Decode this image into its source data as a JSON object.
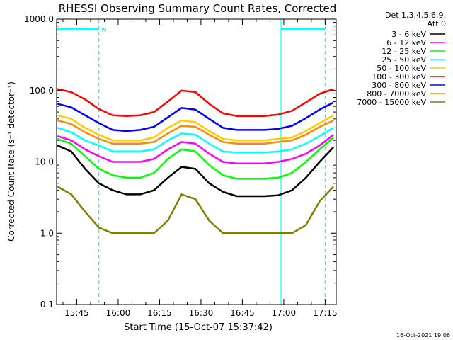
{
  "chart_data": {
    "type": "line",
    "title": "RHESSI Observing Summary Count Rates, Corrected",
    "xlabel": "Start Time (15-Oct-07 15:37:42)",
    "ylabel": "Corrected Count Rate (s⁻¹ detector⁻¹)",
    "y_scale": "log",
    "ylim": [
      0.1,
      1000.0
    ],
    "y_ticks": [
      "0.1",
      "1.0",
      "10.0",
      "100.0",
      "1000.0"
    ],
    "x_ticks": [
      "15:45",
      "16:00",
      "16:15",
      "16:30",
      "16:45",
      "17:00",
      "17:15"
    ],
    "xlim": [
      "15:37:42",
      "17:19:00"
    ],
    "grid": false,
    "legend_position": "right",
    "legend_header": [
      "Det 1,3,4,5,6,9,",
      "Att 0"
    ],
    "night_marker": "N",
    "night_intervals": [
      [
        "15:37:42",
        "15:53:00"
      ],
      [
        "16:59:00",
        "17:15:00"
      ]
    ],
    "time_axis": [
      "15:38",
      "15:43",
      "15:48",
      "15:53",
      "15:58",
      "16:03",
      "16:08",
      "16:13",
      "16:18",
      "16:23",
      "16:28",
      "16:33",
      "16:38",
      "16:43",
      "16:48",
      "16:53",
      "16:58",
      "17:03",
      "17:08",
      "17:13",
      "17:18"
    ],
    "series": [
      {
        "name": "3 - 6 keV",
        "color": "#000000",
        "values": [
          17,
          14,
          8,
          5,
          4,
          3.5,
          3.5,
          4,
          6,
          8.5,
          8,
          5,
          3.8,
          3.3,
          3.3,
          3.3,
          3.4,
          4,
          6,
          10,
          16
        ]
      },
      {
        "name": "6 - 12 keV",
        "color": "#ff00ff",
        "values": [
          23,
          20,
          15,
          12,
          10,
          10,
          10,
          11,
          15,
          19,
          18,
          13,
          10,
          9.5,
          9.5,
          9.5,
          10,
          11,
          13,
          17,
          24
        ]
      },
      {
        "name": "12 - 25 keV",
        "color": "#00ff00",
        "values": [
          21,
          18,
          12,
          8,
          6.5,
          6,
          6,
          7,
          11,
          15,
          14,
          9,
          6.5,
          5.8,
          5.8,
          5.8,
          6,
          7,
          10,
          15,
          22
        ]
      },
      {
        "name": "25 - 50 keV",
        "color": "#00ffff",
        "values": [
          30,
          26,
          20,
          17,
          14,
          14,
          14,
          15,
          20,
          25,
          24,
          18,
          14,
          13.5,
          13.5,
          13.5,
          14,
          15,
          18,
          23,
          30
        ]
      },
      {
        "name": "50 - 100 keV",
        "color": "#ffcc00",
        "values": [
          45,
          40,
          30,
          24,
          20,
          20,
          20,
          22,
          30,
          38,
          36,
          27,
          21,
          20,
          20,
          20,
          21,
          22,
          27,
          35,
          45
        ]
      },
      {
        "name": "100 - 300 keV",
        "color": "#ff0000",
        "values": [
          105,
          95,
          75,
          55,
          45,
          44,
          45,
          50,
          70,
          100,
          95,
          65,
          48,
          44,
          44,
          44,
          46,
          52,
          68,
          90,
          105
        ]
      },
      {
        "name": "300 - 800 keV",
        "color": "#0000ff",
        "values": [
          65,
          58,
          45,
          35,
          28,
          27,
          28,
          31,
          42,
          57,
          54,
          40,
          30,
          28,
          28,
          28,
          29,
          32,
          41,
          54,
          68
        ]
      },
      {
        "name": "800 - 7000 keV",
        "color": "#ff8800",
        "values": [
          38,
          34,
          26,
          21,
          18,
          18,
          18,
          19,
          25,
          32,
          31,
          24,
          19,
          18,
          18,
          18,
          19,
          20,
          24,
          31,
          38
        ]
      },
      {
        "name": "7000 - 15000 keV",
        "color": "#808000",
        "values": [
          4.5,
          3.5,
          2.0,
          1.2,
          1.0,
          1.0,
          1.0,
          1.0,
          1.5,
          3.5,
          3.0,
          1.5,
          1.0,
          1.0,
          1.0,
          1.0,
          1.0,
          1.0,
          1.3,
          2.8,
          4.5
        ]
      }
    ]
  },
  "footer": {
    "timestamp": "16-Oct-2021 19:06"
  }
}
